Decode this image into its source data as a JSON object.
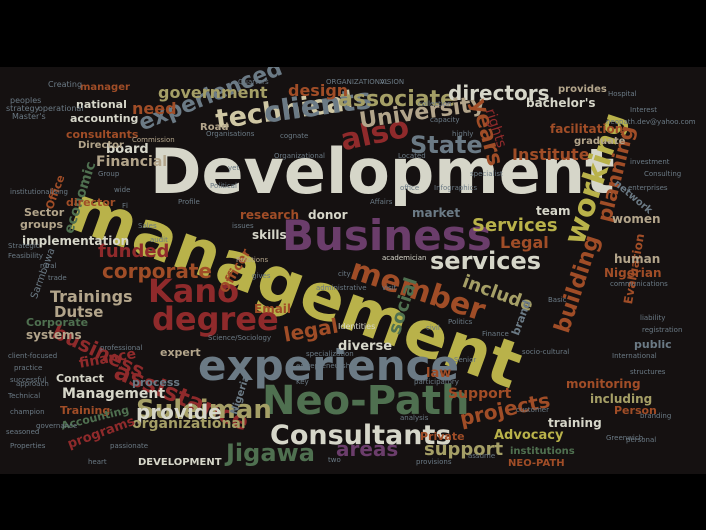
{
  "colors": {
    "background": "#000000",
    "cloud_background": "#151111",
    "palette": [
      "#d6d6c9",
      "#b9b24a",
      "#8f2a2b",
      "#6b7a85",
      "#5a2c52",
      "#4c5f2a",
      "#a04d27",
      "#b3a58b"
    ]
  },
  "words": [
    {
      "text": "Development",
      "color": "#d6d6c9"
    },
    {
      "text": "management",
      "color": "#b9b24a"
    },
    {
      "text": "Business",
      "color": "#6b3d6b"
    },
    {
      "text": "experience",
      "color": "#6b7a85"
    },
    {
      "text": "Neo-Path",
      "color": "#4f7050"
    },
    {
      "text": "Consultants",
      "color": "#d6d6c9"
    },
    {
      "text": "technical",
      "color": "#cfc7a4"
    },
    {
      "text": "clients",
      "color": "#6b7a85"
    },
    {
      "text": "associate",
      "color": "#a59f66"
    },
    {
      "text": "directors",
      "color": "#d6d6c9"
    },
    {
      "text": "State",
      "color": "#6b7a85"
    },
    {
      "text": "also",
      "color": "#8f2a2b"
    },
    {
      "text": "University",
      "color": "#b3a58b"
    },
    {
      "text": "Institute",
      "color": "#a04d27"
    },
    {
      "text": "experienced",
      "color": "#6b7a85"
    },
    {
      "text": "government",
      "color": "#a59f66"
    },
    {
      "text": "need",
      "color": "#a04d27"
    },
    {
      "text": "design",
      "color": "#a04d27"
    },
    {
      "text": "years",
      "color": "#a04d27"
    },
    {
      "text": "member",
      "color": "#a04d27"
    },
    {
      "text": "services",
      "color": "#d6d6c9"
    },
    {
      "text": "Services",
      "color": "#b9b24a"
    },
    {
      "text": "Legal",
      "color": "#a04d27"
    },
    {
      "text": "working",
      "color": "#b9b24a"
    },
    {
      "text": "planning",
      "color": "#a04d27"
    },
    {
      "text": "include",
      "color": "#a59f66"
    },
    {
      "text": "Kano",
      "color": "#8f2a2b"
    },
    {
      "text": "degree",
      "color": "#8f2a2b"
    },
    {
      "text": "corporate",
      "color": "#a04d27"
    },
    {
      "text": "funded",
      "color": "#8f2a2b"
    },
    {
      "text": "Trainings",
      "color": "#b3a58b"
    },
    {
      "text": "Dutse",
      "color": "#b3a58b"
    },
    {
      "text": "legal",
      "color": "#a04d27"
    },
    {
      "text": "assistance",
      "color": "#8f2a2b"
    },
    {
      "text": "Suleiman",
      "color": "#a59f66"
    },
    {
      "text": "provide",
      "color": "#d6d6c9"
    },
    {
      "text": "Jigawa",
      "color": "#4f7050"
    },
    {
      "text": "areas",
      "color": "#6b3d6b"
    },
    {
      "text": "support",
      "color": "#a59f66"
    },
    {
      "text": "projects",
      "color": "#a04d27"
    },
    {
      "text": "Advocacy",
      "color": "#b9b24a"
    },
    {
      "text": "Support",
      "color": "#a04d27"
    },
    {
      "text": "organizational",
      "color": "#a59f66"
    },
    {
      "text": "Management",
      "color": "#d6d6c9"
    },
    {
      "text": "building",
      "color": "#a04d27"
    },
    {
      "text": "board",
      "color": "#d6d6c9"
    },
    {
      "text": "Financial",
      "color": "#b3a58b"
    },
    {
      "text": "research",
      "color": "#a04d27"
    },
    {
      "text": "donor",
      "color": "#d6d6c9"
    },
    {
      "text": "market",
      "color": "#6b7a85"
    },
    {
      "text": "team",
      "color": "#d6d6c9"
    },
    {
      "text": "bachelor's",
      "color": "#d6d6c9"
    },
    {
      "text": "facilitation",
      "color": "#a04d27"
    },
    {
      "text": "national",
      "color": "#d6d6c9"
    },
    {
      "text": "accounting",
      "color": "#d6d6c9"
    },
    {
      "text": "consultants",
      "color": "#a04d27"
    },
    {
      "text": "business",
      "color": "#8f2a2b"
    },
    {
      "text": "finance",
      "color": "#8f2a2b"
    },
    {
      "text": "expert",
      "color": "#b3a58b"
    },
    {
      "text": "diverse",
      "color": "#d6d6c9"
    },
    {
      "text": "process",
      "color": "#6b7a85"
    },
    {
      "text": "Training",
      "color": "#a04d27"
    },
    {
      "text": "Accounting",
      "color": "#4f7050"
    },
    {
      "text": "programs",
      "color": "#8f2a2b"
    },
    {
      "text": "DEVELOPMENT",
      "color": "#d6d6c9"
    },
    {
      "text": "training",
      "color": "#d6d6c9"
    },
    {
      "text": "including",
      "color": "#a59f66"
    },
    {
      "text": "monitoring",
      "color": "#a04d27"
    },
    {
      "text": "Person",
      "color": "#a04d27"
    },
    {
      "text": "Evaluation",
      "color": "#a04d27"
    },
    {
      "text": "women",
      "color": "#b3a58b"
    },
    {
      "text": "human",
      "color": "#b3a58b"
    },
    {
      "text": "Nigerian",
      "color": "#a04d27"
    },
    {
      "text": "public",
      "color": "#6b7a85"
    },
    {
      "text": "social",
      "color": "#4f7050"
    },
    {
      "text": "brand",
      "color": "#6b7a85"
    },
    {
      "text": "law",
      "color": "#a04d27"
    },
    {
      "text": "Private",
      "color": "#a04d27"
    },
    {
      "text": "institutions",
      "color": "#4f7050"
    },
    {
      "text": "NEO-PATH",
      "color": "#a04d27"
    },
    {
      "text": "Contact",
      "color": "#d6d6c9"
    },
    {
      "text": "systems",
      "color": "#b3a58b"
    },
    {
      "text": "Corporate",
      "color": "#4f7050"
    },
    {
      "text": "implementation",
      "color": "#d6d6c9"
    },
    {
      "text": "Sector",
      "color": "#b3a58b"
    },
    {
      "text": "groups",
      "color": "#b3a58b"
    },
    {
      "text": "economic",
      "color": "#4f7050"
    },
    {
      "text": "Office",
      "color": "#a04d27"
    },
    {
      "text": "Director",
      "color": "#b3a58b"
    },
    {
      "text": "manager",
      "color": "#a04d27"
    },
    {
      "text": "provides",
      "color": "#b3a58b"
    },
    {
      "text": "graduate",
      "color": "#b3a58b"
    },
    {
      "text": "network",
      "color": "#6b7a85"
    },
    {
      "text": "Road",
      "color": "#b3a58b"
    },
    {
      "text": "Officer",
      "color": "#a04d27"
    },
    {
      "text": "skills",
      "color": "#d6d6c9"
    },
    {
      "text": "Email",
      "color": "#a04d27"
    },
    {
      "text": "Nigeria",
      "color": "#6b7a85"
    },
    {
      "text": "director",
      "color": "#a04d27"
    },
    {
      "text": "Creating",
      "color": "#6b7a85"
    },
    {
      "text": "Master's",
      "color": "#6b7a85"
    },
    {
      "text": "operational",
      "color": "#6b7a85"
    },
    {
      "text": "Commission",
      "color": "#b3a58b"
    },
    {
      "text": "Identities",
      "color": "#d6d6c9"
    },
    {
      "text": "Relations",
      "color": "#b3a58b"
    },
    {
      "text": "academician",
      "color": "#d6d6c9"
    },
    {
      "text": "Profile",
      "color": "#6b7a85"
    },
    {
      "text": "Consulting",
      "color": "#6b7a85"
    },
    {
      "text": "enterprises",
      "color": "#6b7a85"
    },
    {
      "text": "investment",
      "color": "#6b7a85"
    },
    {
      "text": "registration",
      "color": "#6b7a85"
    },
    {
      "text": "Sales",
      "color": "#6b7a85"
    },
    {
      "text": "Hospital",
      "color": "#6b7a85"
    },
    {
      "text": "Interest",
      "color": "#6b7a85"
    },
    {
      "text": "neopath.dev@yahoo.com",
      "color": "#6b7a85"
    },
    {
      "text": "communications",
      "color": "#6b7a85"
    },
    {
      "text": "Key",
      "color": "#6b7a85"
    },
    {
      "text": "Quarters",
      "color": "#6b7a85"
    },
    {
      "text": "VISION",
      "color": "#6b7a85"
    },
    {
      "text": "ORGANIZATIONAL",
      "color": "#6b7a85"
    },
    {
      "text": "peoples",
      "color": "#6b7a85"
    },
    {
      "text": "strategy",
      "color": "#6b7a85"
    },
    {
      "text": "approach",
      "color": "#6b7a85"
    },
    {
      "text": "Technical",
      "color": "#6b7a85"
    },
    {
      "text": "champion",
      "color": "#6b7a85"
    },
    {
      "text": "seasoned",
      "color": "#6b7a85"
    },
    {
      "text": "governance",
      "color": "#6b7a85"
    },
    {
      "text": "Greenwich",
      "color": "#6b7a85"
    },
    {
      "text": "International",
      "color": "#6b7a85"
    },
    {
      "text": "branding",
      "color": "#6b7a85"
    },
    {
      "text": "personal",
      "color": "#6b7a85"
    },
    {
      "text": "Politics",
      "color": "#6b7a85"
    },
    {
      "text": "Finance",
      "color": "#6b7a85"
    },
    {
      "text": "Senior",
      "color": "#6b7a85"
    },
    {
      "text": "civil",
      "color": "#6b7a85"
    },
    {
      "text": "Basic",
      "color": "#6b7a85"
    },
    {
      "text": "client-focused",
      "color": "#6b7a85"
    },
    {
      "text": "practice",
      "color": "#6b7a85"
    },
    {
      "text": "successful",
      "color": "#6b7a85"
    },
    {
      "text": "collection",
      "color": "#6b7a85"
    },
    {
      "text": "capacity",
      "color": "#6b7a85"
    },
    {
      "text": "rights",
      "color": "#8f2a2b"
    },
    {
      "text": "Group",
      "color": "#6b7a85"
    },
    {
      "text": "participatory",
      "color": "#6b7a85"
    },
    {
      "text": "socio-cultural",
      "color": "#6b7a85"
    },
    {
      "text": "Strategic",
      "color": "#6b7a85"
    },
    {
      "text": "trade",
      "color": "#6b7a85"
    },
    {
      "text": "rural",
      "color": "#6b7a85"
    },
    {
      "text": "structures",
      "color": "#6b7a85"
    },
    {
      "text": "liability",
      "color": "#6b7a85"
    },
    {
      "text": "audit",
      "color": "#6b7a85"
    },
    {
      "text": "professional",
      "color": "#6b7a85"
    },
    {
      "text": "specialization",
      "color": "#6b7a85"
    },
    {
      "text": "entrepreneurship",
      "color": "#6b7a85"
    },
    {
      "text": "administrative",
      "color": "#6b7a85"
    },
    {
      "text": "analysis",
      "color": "#6b7a85"
    },
    {
      "text": "customer",
      "color": "#6b7a85"
    },
    {
      "text": "provisions",
      "color": "#6b7a85"
    },
    {
      "text": "cognate",
      "color": "#6b7a85"
    },
    {
      "text": "Organizational",
      "color": "#6b7a85"
    },
    {
      "text": "Affairs",
      "color": "#6b7a85"
    },
    {
      "text": "city",
      "color": "#6b7a85"
    },
    {
      "text": "visit",
      "color": "#6b7a85"
    },
    {
      "text": "gives",
      "color": "#6b7a85"
    },
    {
      "text": "issues",
      "color": "#6b7a85"
    },
    {
      "text": "Located",
      "color": "#6b7a85"
    },
    {
      "text": "office",
      "color": "#6b7a85"
    },
    {
      "text": "two",
      "color": "#6b7a85"
    },
    {
      "text": "Organisations",
      "color": "#6b7a85"
    },
    {
      "text": "Science/Sociology",
      "color": "#6b7a85"
    },
    {
      "text": "Infographics",
      "color": "#6b7a85"
    },
    {
      "text": "wide",
      "color": "#6b7a85"
    },
    {
      "text": "highly",
      "color": "#6b7a85"
    },
    {
      "text": "assume",
      "color": "#6b7a85"
    },
    {
      "text": "heart",
      "color": "#6b7a85"
    },
    {
      "text": "specialist",
      "color": "#6b7a85"
    },
    {
      "text": "Properties",
      "color": "#6b7a85"
    },
    {
      "text": "passionate",
      "color": "#6b7a85"
    },
    {
      "text": "Feasibility",
      "color": "#6b7a85"
    },
    {
      "text": "Sarmbawa",
      "color": "#6b7a85"
    },
    {
      "text": "institutionalising",
      "color": "#6b7a85"
    },
    {
      "text": "Political",
      "color": "#6b7a85"
    },
    {
      "text": "yet",
      "color": "#6b7a85"
    },
    {
      "text": "Fl",
      "color": "#6b7a85"
    }
  ]
}
